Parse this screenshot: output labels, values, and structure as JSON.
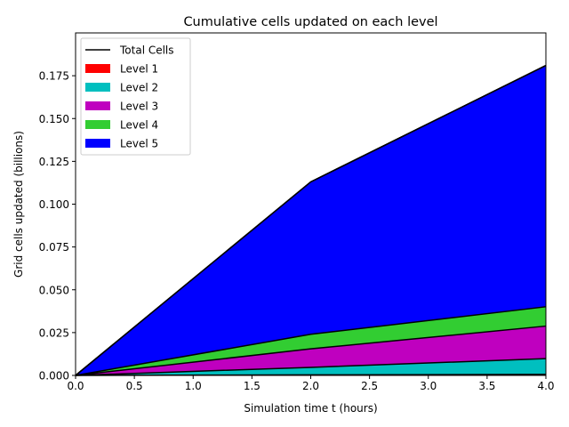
{
  "chart_data": {
    "type": "area",
    "title": "Cumulative cells updated on each level",
    "xlabel": "Simulation time t (hours)",
    "ylabel": "Grid cells updated (billions)",
    "xlim": [
      0.0,
      4.0
    ],
    "ylim": [
      0.0,
      0.2
    ],
    "x": [
      0.0,
      2.0,
      4.0
    ],
    "xticks": [
      "0.0",
      "0.5",
      "1.0",
      "1.5",
      "2.0",
      "2.5",
      "3.0",
      "3.5",
      "4.0"
    ],
    "yticks": [
      "0.000",
      "0.025",
      "0.050",
      "0.075",
      "0.100",
      "0.125",
      "0.150",
      "0.175"
    ],
    "stacked": true,
    "series": [
      {
        "name": "Level 1",
        "color": "#ff0000",
        "values": [
          0.0,
          0.0003,
          0.0006
        ]
      },
      {
        "name": "Level 2",
        "color": "#00bfbf",
        "values": [
          0.0,
          0.0044,
          0.0092
        ]
      },
      {
        "name": "Level 3",
        "color": "#bf00bf",
        "values": [
          0.0,
          0.0108,
          0.019
        ]
      },
      {
        "name": "Level 4",
        "color": "#32cd32",
        "values": [
          0.0,
          0.0085,
          0.0113
        ]
      },
      {
        "name": "Level 5",
        "color": "#0000ff",
        "values": [
          0.0,
          0.089,
          0.1409
        ]
      }
    ],
    "total": {
      "name": "Total Cells",
      "color": "#000000",
      "values": [
        0.0,
        0.113,
        0.181
      ]
    },
    "legend_position": "top-left",
    "grid": false
  }
}
